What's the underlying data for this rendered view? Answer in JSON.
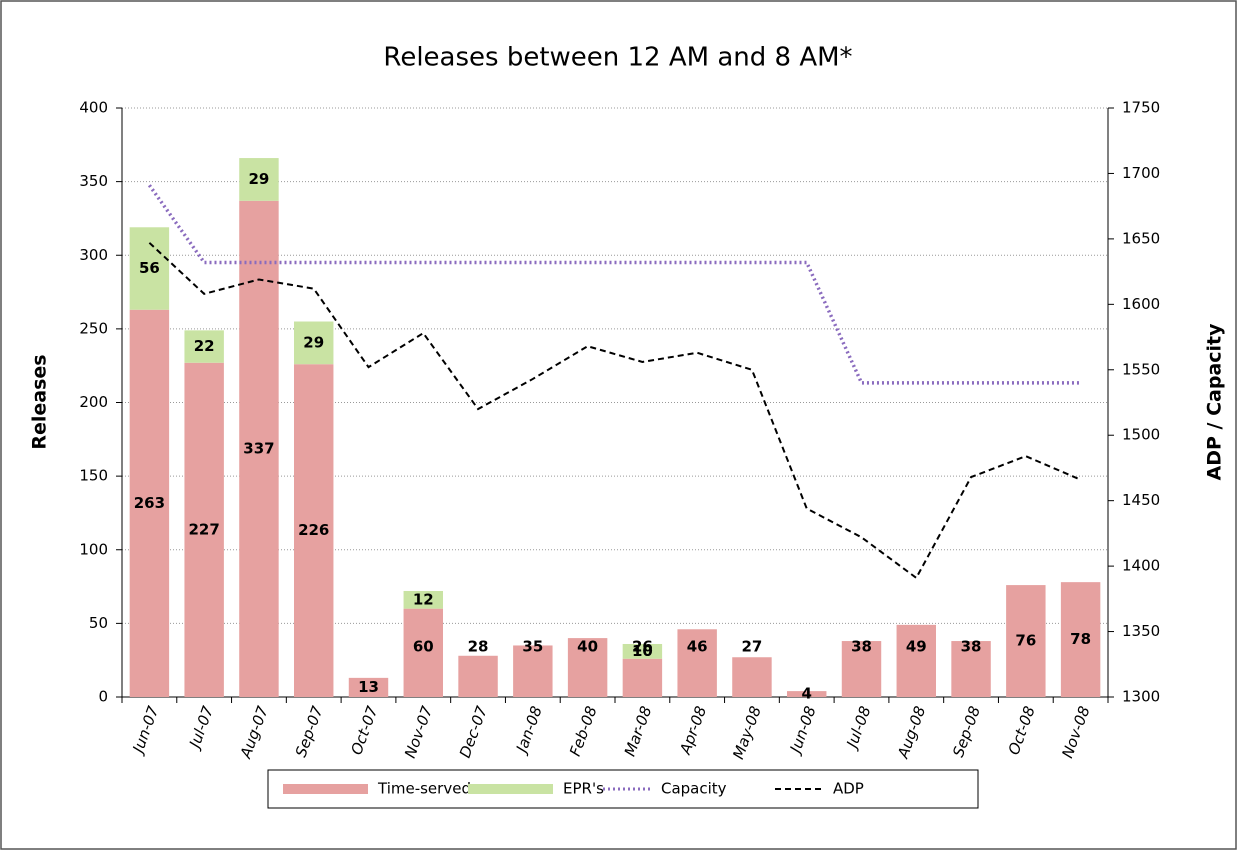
{
  "chart_data": {
    "type": "bar-line",
    "title": "Releases between 12 AM and 8 AM*",
    "y_label": "Releases",
    "y2_label": "ADP / Capacity",
    "categories": [
      "Jun-07",
      "Jul-07",
      "Aug-07",
      "Sep-07",
      "Oct-07",
      "Nov-07",
      "Dec-07",
      "Jan-08",
      "Feb-08",
      "Mar-08",
      "Apr-08",
      "May-08",
      "Jun-08",
      "Jul-08",
      "Aug-08",
      "Sep-08",
      "Oct-08",
      "Nov-08"
    ],
    "series": [
      {
        "name": "Time-served",
        "type": "bar",
        "color": "#e6a1a0",
        "values": [
          263,
          227,
          337,
          226,
          13,
          60,
          28,
          35,
          40,
          26,
          46,
          27,
          4,
          38,
          49,
          38,
          76,
          78
        ]
      },
      {
        "name": "EPR's",
        "type": "bar",
        "color": "#c9e3a3",
        "values": [
          56,
          22,
          29,
          29,
          null,
          12,
          null,
          null,
          null,
          10,
          null,
          null,
          null,
          null,
          null,
          null,
          null,
          null
        ]
      },
      {
        "name": "Capacity",
        "type": "line",
        "axis": "y2",
        "color": "#8a6bbe",
        "dash": "dotted",
        "values": [
          1691,
          1632,
          1632,
          1632,
          1632,
          1632,
          1632,
          1632,
          1632,
          1632,
          1632,
          1632,
          1632,
          1540,
          1540,
          1540,
          1540,
          1540
        ]
      },
      {
        "name": "ADP",
        "type": "line",
        "axis": "y2",
        "color": "#000000",
        "dash": "dashed",
        "values": [
          1647,
          1608,
          1619,
          1612,
          1552,
          1578,
          1520,
          1543,
          1568,
          1556,
          1563,
          1550,
          1444,
          1422,
          1391,
          1468,
          1484,
          1466
        ]
      }
    ],
    "ylim": [
      0,
      400
    ],
    "yticks": [
      0,
      50,
      100,
      150,
      200,
      250,
      300,
      350,
      400
    ],
    "y2lim": [
      1300,
      1750
    ],
    "y2ticks": [
      1300,
      1350,
      1400,
      1450,
      1500,
      1550,
      1600,
      1650,
      1700,
      1750
    ],
    "grid": true,
    "legend": "bottom"
  }
}
